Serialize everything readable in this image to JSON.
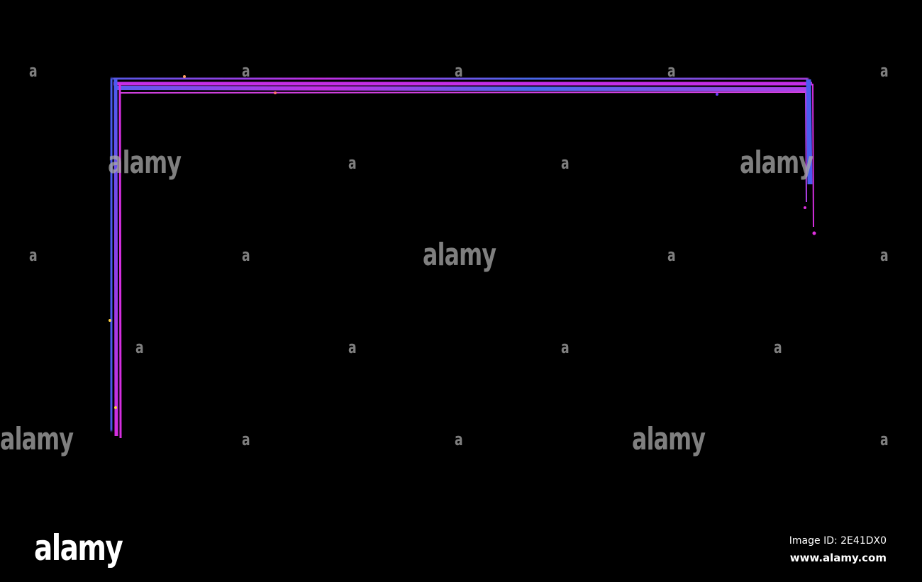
{
  "watermark": {
    "logo_text": "alamy",
    "letter": "a",
    "image_id": "Image ID: 2E41DX0",
    "site": "www.alamy.com"
  },
  "colors": {
    "background": "#000000",
    "neon_blue": "#4a5cf0",
    "neon_magenta": "#d42ee0",
    "neon_violet": "#8a40e8"
  }
}
